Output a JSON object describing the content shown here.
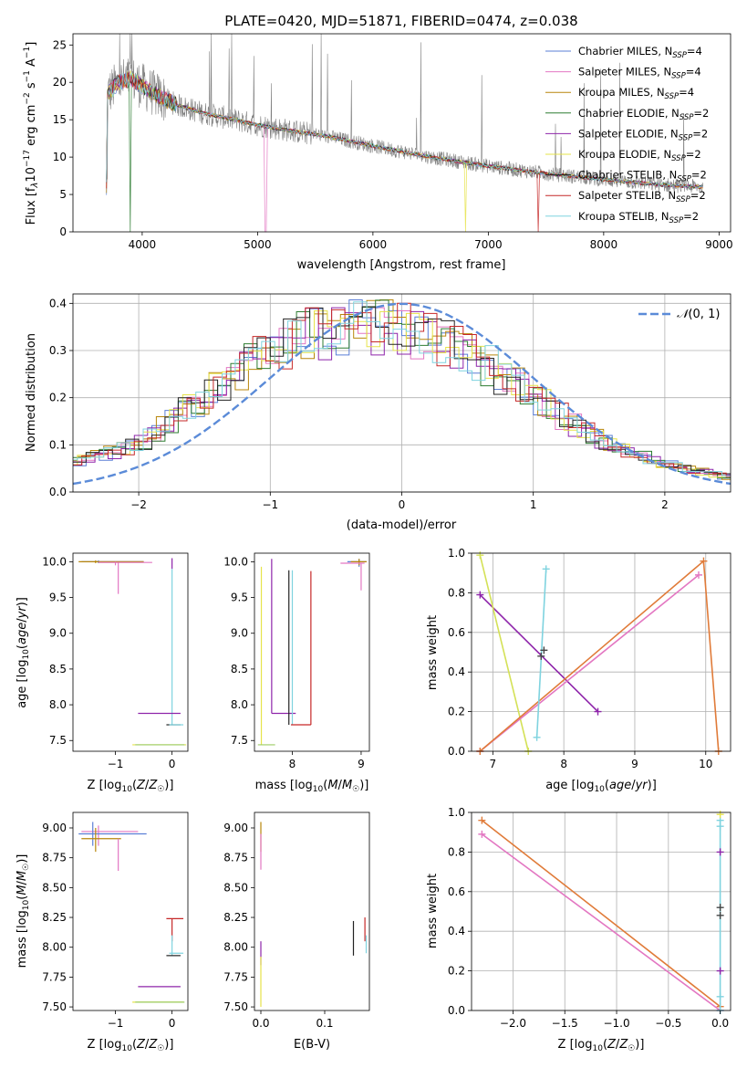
{
  "chart_data": [
    {
      "type": "line",
      "title": "PLATE=0420, MJD=51871, FIBERID=0474, z=0.038",
      "xlabel": "wavelength [Angstrom, rest frame]",
      "ylabel": "Flux [f_λ 10^-17 erg cm^-2 s^-1 A^-1]",
      "xlim": [
        3400,
        9100
      ],
      "ylim": [
        0,
        26.5
      ],
      "xticks": [
        4000,
        5000,
        6000,
        7000,
        8000,
        9000
      ],
      "yticks": [
        0,
        5,
        10,
        15,
        20,
        25
      ],
      "x_range_data": [
        3690,
        8860
      ],
      "continuum": {
        "x": [
          3700,
          3800,
          3900,
          4000,
          4100,
          4300,
          4500,
          4800,
          5000,
          5300,
          5600,
          6000,
          6500,
          7000,
          7500,
          8000,
          8500,
          8860
        ],
        "y": [
          18.5,
          20,
          20.5,
          19.5,
          18.5,
          17,
          16,
          15,
          14.3,
          13.5,
          12.8,
          11.5,
          10,
          8.8,
          7.8,
          7,
          6.3,
          6
        ]
      },
      "legend": [
        "Chabrier MILES, N_SSP=4",
        "Salpeter MILES, N_SSP=4",
        "Kroupa MILES, N_SSP=4",
        "Chabrier ELODIE, N_SSP=2",
        "Salpeter ELODIE, N_SSP=2",
        "Kroupa ELODIE, N_SSP=2",
        "Chabrier STELIB, N_SSP=2",
        "Salpeter STELIB, N_SSP=2",
        "Kroupa STELIB, N_SSP=2"
      ],
      "legend_placement": "top-right",
      "grid": false
    },
    {
      "type": "line",
      "xlabel": "(data-model)/error",
      "ylabel": "Normed distribution",
      "xlim": [
        -2.5,
        2.5
      ],
      "ylim": [
        0,
        0.42
      ],
      "xticks": [
        -2,
        -1,
        0,
        1,
        2
      ],
      "yticks": [
        0.0,
        0.1,
        0.2,
        0.3,
        0.4
      ],
      "legend": [
        "N(0,1)"
      ],
      "legend_placement": "top-right",
      "grid": true,
      "hist_envelope": {
        "x": [
          -2.5,
          -2.0,
          -1.5,
          -1.0,
          -0.5,
          0.0,
          0.5,
          1.0,
          1.5,
          2.0,
          2.5
        ],
        "y": [
          0.06,
          0.1,
          0.2,
          0.3,
          0.35,
          0.35,
          0.3,
          0.2,
          0.11,
          0.06,
          0.03
        ]
      }
    },
    {
      "type": "scatter",
      "xlabel": "Z [log10(Z/Z☉)]",
      "ylabel": "age [log10(age/yr)]",
      "xlim": [
        -1.75,
        0.28
      ],
      "ylim": [
        7.35,
        10.12
      ],
      "xticks": [
        -1,
        0
      ],
      "yticks": [
        7.5,
        8.0,
        8.5,
        9.0,
        9.5,
        10.0
      ]
    },
    {
      "type": "scatter",
      "xlabel": "mass [log10(M/M☉)]",
      "xlim": [
        7.45,
        9.12
      ],
      "ylim": [
        7.35,
        10.12
      ],
      "xticks": [
        8,
        9
      ],
      "yticks": [
        7.5,
        8.0,
        8.5,
        9.0,
        9.5,
        10.0
      ]
    },
    {
      "type": "line",
      "xlabel": "age [log10(age/yr)]",
      "ylabel": "mass weight",
      "xlim": [
        6.7,
        10.35
      ],
      "ylim": [
        0,
        1
      ],
      "xticks": [
        7,
        8,
        9,
        10
      ],
      "yticks": [
        0.0,
        0.2,
        0.4,
        0.6,
        0.8,
        1.0
      ],
      "grid": true,
      "series": [
        {
          "color": "#8e24aa",
          "x": [
            6.82,
            8.48
          ],
          "y": [
            0.79,
            0.2
          ]
        },
        {
          "color": "#d4e157",
          "x": [
            6.82,
            7.5
          ],
          "y": [
            0.99,
            0.0
          ]
        },
        {
          "color": "#e377c2",
          "x": [
            6.82,
            9.9
          ],
          "y": [
            0.0,
            0.89
          ]
        },
        {
          "color": "#e07b39",
          "x": [
            6.82,
            9.97,
            10.18
          ],
          "y": [
            0.0,
            0.96,
            0.0
          ]
        },
        {
          "color": "#7fd3df",
          "x": [
            7.62,
            7.75
          ],
          "y": [
            0.07,
            0.92
          ]
        }
      ]
    },
    {
      "type": "scatter",
      "xlabel": "Z [log10(Z/Z☉)]",
      "ylabel": "mass [log10(M/M☉)]",
      "xlim": [
        -1.75,
        0.28
      ],
      "ylim": [
        7.47,
        9.13
      ],
      "xticks": [
        -1,
        0
      ],
      "yticks": [
        7.5,
        7.75,
        8.0,
        8.25,
        8.5,
        8.75,
        9.0
      ]
    },
    {
      "type": "scatter",
      "xlabel": "E(B-V)",
      "xlim": [
        -0.01,
        0.17
      ],
      "ylim": [
        7.47,
        9.13
      ],
      "xticks": [
        0.0,
        0.1
      ],
      "yticks": [
        7.5,
        7.75,
        8.0,
        8.25,
        8.5,
        8.75,
        9.0
      ]
    },
    {
      "type": "line",
      "xlabel": "Z [log10(Z/Z☉)]",
      "ylabel": "mass weight",
      "xlim": [
        -2.4,
        0.1
      ],
      "ylim": [
        0,
        1
      ],
      "xticks": [
        -2.0,
        -1.5,
        -1.0,
        -0.5,
        0.0
      ],
      "yticks": [
        0.0,
        0.2,
        0.4,
        0.6,
        0.8,
        1.0
      ],
      "grid": true,
      "series": [
        {
          "color": "#e07b39",
          "x": [
            -2.3,
            0.0
          ],
          "y": [
            0.96,
            0.02
          ]
        },
        {
          "color": "#e377c2",
          "x": [
            -2.3,
            0.0
          ],
          "y": [
            0.89,
            0.0
          ]
        },
        {
          "color": "#7fd3df",
          "x": [
            0.0,
            0.0
          ],
          "y": [
            0.0,
            0.96
          ]
        }
      ]
    }
  ],
  "legend_colors": [
    "#5b7fd6",
    "#e377c2",
    "#b8860b",
    "#2e7d32",
    "#8e24aa",
    "#e6e34a",
    "#222222",
    "#c62828",
    "#7fd3df"
  ],
  "gaussian_color": "#5b8bd8"
}
